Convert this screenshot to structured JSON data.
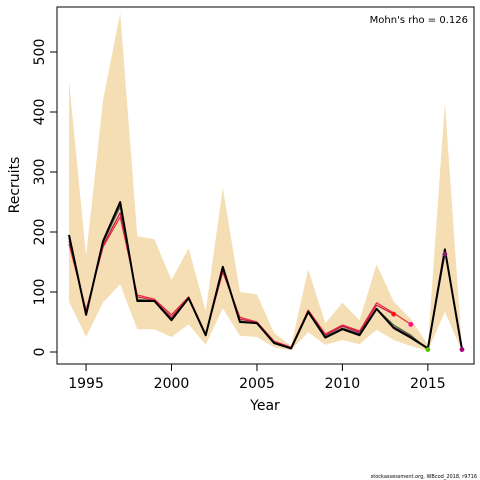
{
  "chart_data": {
    "type": "line",
    "title": "",
    "xlabel": "Year",
    "ylabel": "Recruits",
    "xlim": [
      1993.3,
      2017.7
    ],
    "ylim": [
      -20,
      575
    ],
    "xticks": [
      1995,
      2000,
      2005,
      2010,
      2015
    ],
    "yticks": [
      0,
      100,
      200,
      300,
      400,
      500
    ],
    "annotation": "Mohn's rho = 0.126",
    "footer": "stockassessment.org, WBcod_2018, r9716",
    "band": {
      "color": "#f5deb3",
      "x": [
        1994,
        1995,
        1996,
        1997,
        1998,
        1999,
        2000,
        2001,
        2002,
        2003,
        2004,
        2005,
        2006,
        2007,
        2008,
        2009,
        2010,
        2011,
        2012,
        2013,
        2014,
        2015,
        2016,
        2017
      ],
      "upper": [
        452,
        160,
        420,
        565,
        193,
        188,
        120,
        173,
        68,
        274,
        100,
        96,
        32,
        10,
        138,
        48,
        82,
        53,
        146,
        84,
        55,
        12,
        415,
        5
      ],
      "lower": [
        84,
        25,
        83,
        113,
        38,
        38,
        25,
        46,
        12,
        73,
        27,
        25,
        8,
        3,
        33,
        12,
        20,
        13,
        37,
        20,
        10,
        2,
        67,
        1
      ]
    },
    "series": [
      {
        "color": "#e8283c",
        "x": [
          1994,
          1995,
          1996,
          1997,
          1998,
          1999,
          2000,
          2001,
          2002,
          2003,
          2004,
          2005,
          2006,
          2007,
          2008,
          2009,
          2010,
          2011,
          2012,
          2013,
          2014
        ],
        "values": [
          180,
          70,
          175,
          225,
          95,
          88,
          62,
          92,
          30,
          133,
          58,
          50,
          18,
          8,
          70,
          30,
          45,
          35,
          82,
          65,
          46
        ],
        "endpoint": [
          2014,
          46
        ]
      },
      {
        "color": "#c4144a",
        "x": [
          1994,
          1995,
          1996,
          1997,
          1998,
          1999,
          2000,
          2001,
          2002,
          2003,
          2004,
          2005,
          2006,
          2007,
          2008,
          2009,
          2010,
          2011,
          2012,
          2013
        ],
        "values": [
          185,
          66,
          178,
          232,
          92,
          86,
          58,
          90,
          29,
          136,
          55,
          49,
          17,
          7,
          68,
          28,
          43,
          33,
          78,
          63
        ],
        "endpoint": [
          2013,
          63
        ]
      },
      {
        "color": "#3a7a2a",
        "x": [
          1994,
          1995,
          1996,
          1997,
          1998,
          1999,
          2000,
          2001,
          2002,
          2003,
          2004,
          2005,
          2006,
          2007,
          2008,
          2009,
          2010,
          2011,
          2012,
          2013,
          2014,
          2015
        ],
        "values": [
          190,
          63,
          182,
          242,
          88,
          85,
          55,
          89,
          28,
          140,
          52,
          48,
          16,
          6,
          66,
          26,
          40,
          31,
          72,
          45,
          28,
          4
        ],
        "endpoint": [
          2015,
          4
        ]
      },
      {
        "color": "#7a1f6e",
        "x": [
          1994,
          1995,
          1996,
          1997,
          1998,
          1999,
          2000,
          2001,
          2002,
          2003,
          2004,
          2005,
          2006,
          2007,
          2008,
          2009,
          2010,
          2011,
          2012,
          2013,
          2014,
          2015,
          2016
        ],
        "values": [
          193,
          62,
          184,
          246,
          86,
          85,
          54,
          89,
          28,
          141,
          51,
          48,
          15,
          6,
          66,
          25,
          39,
          30,
          72,
          42,
          26,
          6,
          163
        ],
        "endpoint": [
          2016,
          163
        ]
      },
      {
        "color": "#000000",
        "x": [
          1994,
          1995,
          1996,
          1997,
          1998,
          1999,
          2000,
          2001,
          2002,
          2003,
          2004,
          2005,
          2006,
          2007,
          2008,
          2009,
          2010,
          2011,
          2012,
          2013,
          2014,
          2015,
          2016,
          2017
        ],
        "values": [
          195,
          62,
          185,
          250,
          85,
          85,
          53,
          90,
          28,
          142,
          50,
          48,
          15,
          6,
          67,
          24,
          38,
          28,
          72,
          40,
          24,
          6,
          171,
          4
        ],
        "endpoint": [
          2017,
          4
        ]
      }
    ],
    "grid": false,
    "legend": "none"
  }
}
